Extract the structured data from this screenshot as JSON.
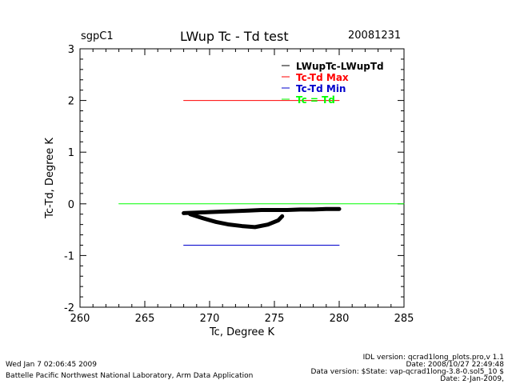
{
  "header": {
    "site": "sgpC1",
    "title": "LWup Tc - Td test",
    "date": "20081231"
  },
  "footer": {
    "left": [
      "Wed Jan  7 02:06:45 2009",
      "Battelle Pacific Northwest National Laboratory, Arm Data Application"
    ],
    "right": [
      "IDL version: qcrad1long_plots.pro,v 1.1",
      "Date: 2008/10/27 22:49:48",
      "Data version: $State: vap-qcrad1long-3.8-0.sol5_10 $",
      "Date: 2-Jan-2009,"
    ]
  },
  "chart_data": {
    "type": "line",
    "title": "LWup Tc - Td test",
    "xlabel": "Tc, Degree K",
    "ylabel": "Tc-Td, Degree K",
    "xlim": [
      260,
      285
    ],
    "ylim": [
      -2,
      3
    ],
    "xticks": [
      "260",
      "265",
      "270",
      "275",
      "280",
      "285"
    ],
    "yticks": [
      "-2",
      "-1",
      "0",
      "1",
      "2",
      "3"
    ],
    "legend_position": "top-right",
    "series": [
      {
        "name": "LWupTc-LWupTd",
        "color": "#000000",
        "x": [
          268,
          269,
          270,
          271,
          272,
          273,
          274,
          275,
          276,
          277,
          278,
          279,
          280
        ],
        "y": [
          -0.18,
          -0.17,
          -0.16,
          -0.15,
          -0.14,
          -0.13,
          -0.12,
          -0.12,
          -0.12,
          -0.11,
          -0.11,
          -0.1,
          -0.1
        ],
        "x2": [
          268.5,
          269.5,
          270.5,
          271.5,
          272.5,
          273.5,
          274.5,
          275.3,
          275.6
        ],
        "y2": [
          -0.2,
          -0.28,
          -0.35,
          -0.4,
          -0.43,
          -0.45,
          -0.4,
          -0.32,
          -0.24
        ]
      },
      {
        "name": "Tc-Td Max",
        "color": "#ff0000",
        "x": [
          268,
          280
        ],
        "y": [
          2,
          2
        ]
      },
      {
        "name": "Tc-Td Min",
        "color": "#0000cc",
        "x": [
          268,
          280
        ],
        "y": [
          -0.8,
          -0.8
        ]
      },
      {
        "name": "Tc = Td",
        "color": "#00ff00",
        "x": [
          263,
          285
        ],
        "y": [
          0,
          0
        ]
      }
    ]
  }
}
